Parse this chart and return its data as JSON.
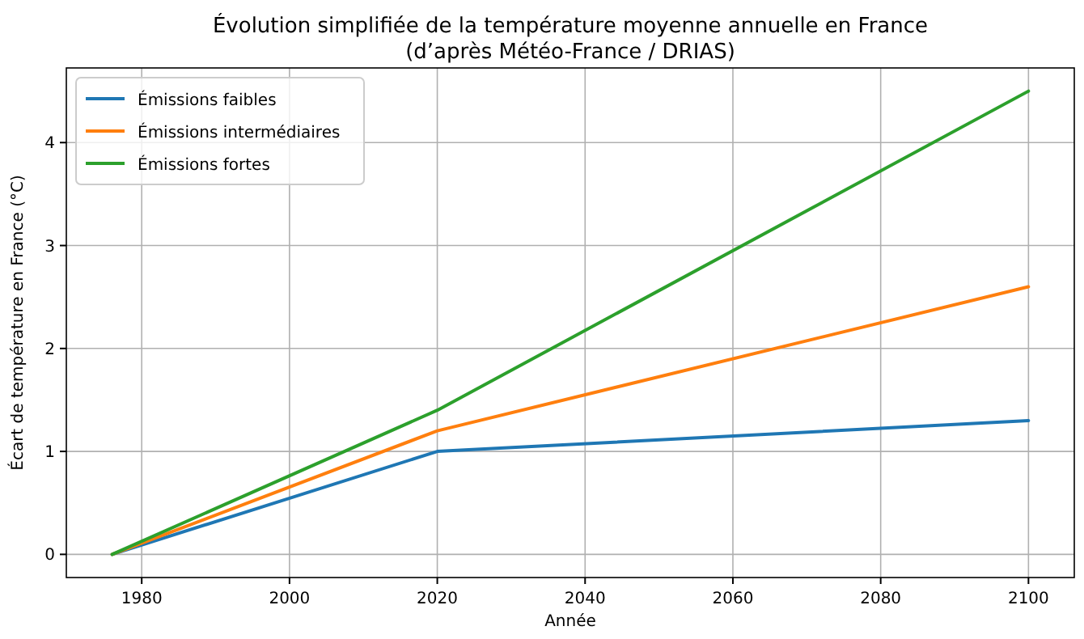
{
  "chart_data": {
    "type": "line",
    "title": "Évolution simplifiée de la température moyenne annuelle en France",
    "subtitle": "(d’après Météo-France / DRIAS)",
    "xlabel": "Année",
    "ylabel": "Écart de température en France (°C)",
    "x": [
      1976,
      2020,
      2100
    ],
    "series": [
      {
        "name": "Émissions faibles",
        "color": "#1f77b4",
        "values": [
          0,
          1.0,
          1.3
        ]
      },
      {
        "name": "Émissions intermédiaires",
        "color": "#ff7f0e",
        "values": [
          0,
          1.2,
          2.6
        ]
      },
      {
        "name": "Émissions fortes",
        "color": "#2ca02c",
        "values": [
          0,
          1.4,
          4.5
        ]
      }
    ],
    "xlim": [
      1969.8,
      2106.2
    ],
    "xticks": [
      1980,
      2000,
      2020,
      2040,
      2060,
      2080,
      2100
    ],
    "ylim": [
      -0.225,
      4.725
    ],
    "yticks": [
      0,
      1,
      2,
      3,
      4
    ],
    "grid": true,
    "legend": "top left",
    "marker": "none",
    "line_style": "solid"
  }
}
